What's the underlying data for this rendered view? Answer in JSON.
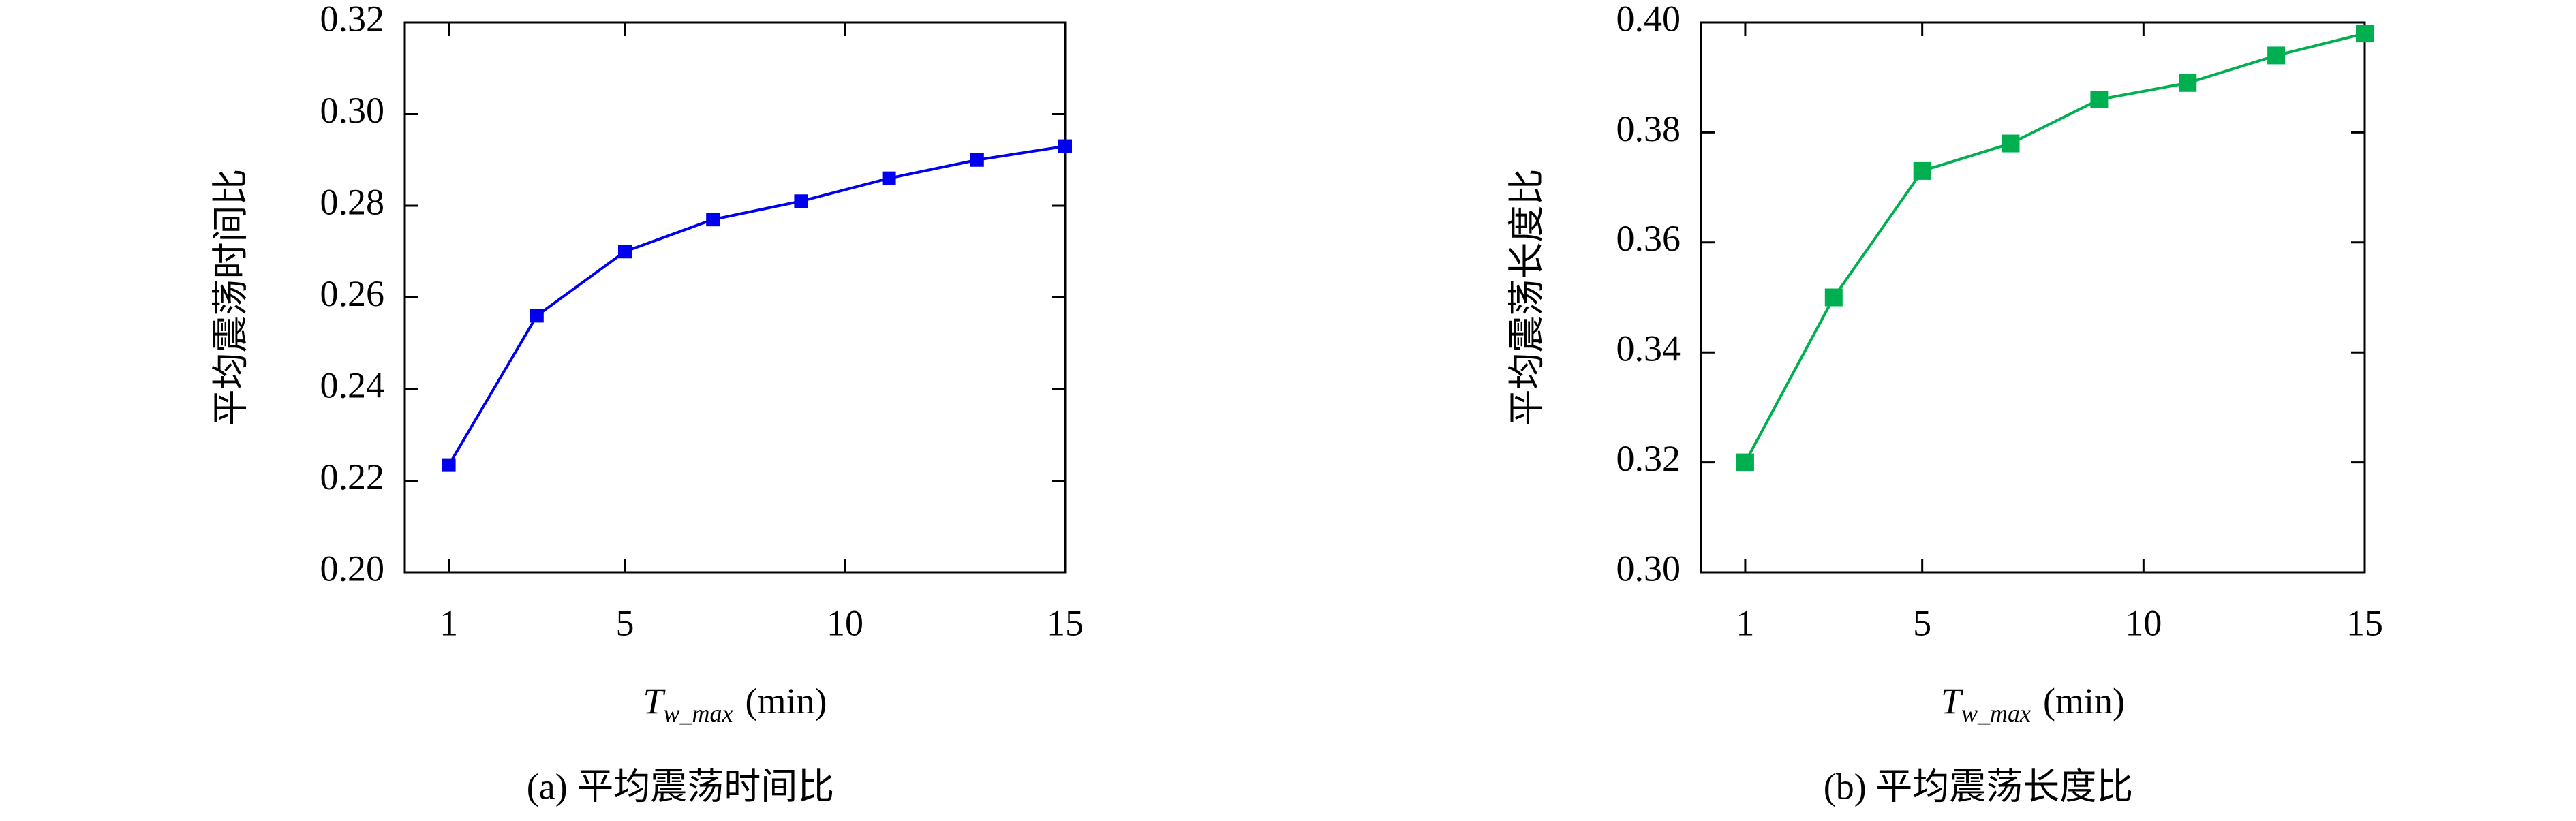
{
  "chart_data": [
    {
      "type": "line",
      "caption": "(a) 平均震荡时间比",
      "y_label": "平均震荡时间比",
      "x_label": "T",
      "x_label_sub": "w_max",
      "x_label_unit": "(min)",
      "x": [
        1,
        3,
        5,
        7,
        9,
        11,
        13,
        15
      ],
      "values": [
        0.2234,
        0.256,
        0.27,
        0.277,
        0.281,
        0.286,
        0.29,
        0.293
      ],
      "color": "#0000ee",
      "xlim": [
        0,
        15
      ],
      "xticks": [
        1,
        5,
        10,
        15
      ],
      "ylim": [
        0.2,
        0.32
      ],
      "yticks": [
        {
          "value": 0.2,
          "label": "0.20"
        },
        0.22,
        0.24,
        0.26,
        0.28,
        {
          "value": 0.3,
          "label": "0.30"
        },
        0.32
      ],
      "grid": false
    },
    {
      "type": "line",
      "caption": "(b) 平均震荡长度比",
      "y_label": "平均震荡长度比",
      "x_label": "T",
      "x_label_sub": "w_max",
      "x_label_unit": "(min)",
      "x": [
        1,
        3,
        5,
        7,
        9,
        11,
        13,
        15
      ],
      "values": [
        0.32,
        0.35,
        0.373,
        0.378,
        0.386,
        0.389,
        0.394,
        0.398
      ],
      "color": "#00b050",
      "xlim": [
        0,
        15
      ],
      "xticks": [
        1,
        5,
        10,
        15
      ],
      "ylim": [
        0.3,
        0.4
      ],
      "yticks": [
        {
          "value": 0.3,
          "label": "0.30"
        },
        0.32,
        0.34,
        0.36,
        0.38,
        {
          "value": 0.4,
          "label": "0.40"
        }
      ],
      "grid": false
    }
  ]
}
